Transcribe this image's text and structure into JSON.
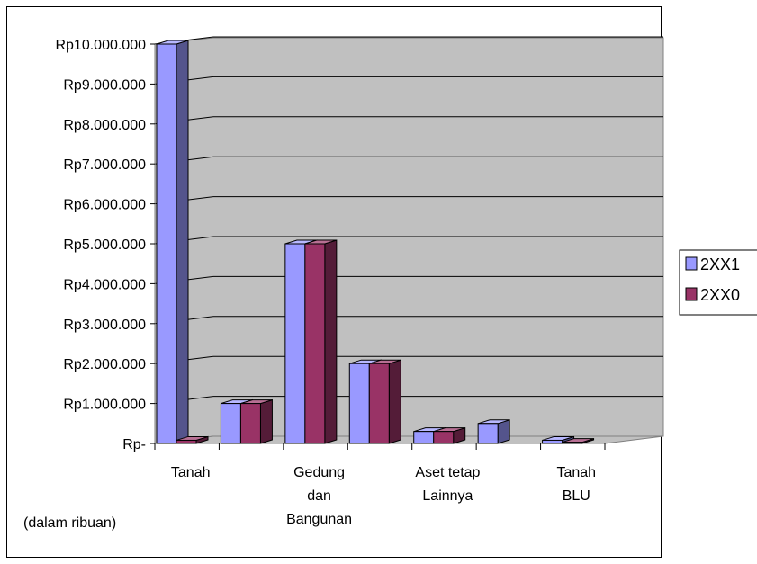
{
  "chart_data": {
    "type": "bar",
    "categories": [
      [
        "Tanah"
      ],
      [
        ""
      ],
      [
        "Gedung",
        "dan",
        "Bangunan"
      ],
      [
        ""
      ],
      [
        "Aset tetap",
        "Lainnya"
      ],
      [
        ""
      ],
      [
        "Tanah",
        "BLU"
      ]
    ],
    "series": [
      {
        "name": "2XX1",
        "color": "#9999ff",
        "values": [
          10000000,
          1000000,
          5000000,
          2000000,
          300000,
          500000,
          80000
        ]
      },
      {
        "name": "2XX0",
        "color": "#993366",
        "values": [
          80000,
          1000000,
          5000000,
          2000000,
          300000,
          0,
          30000
        ]
      }
    ],
    "yticks": [
      "Rp-",
      "Rp1.000.000",
      "Rp2.000.000",
      "Rp3.000.000",
      "Rp4.000.000",
      "Rp5.000.000",
      "Rp6.000.000",
      "Rp7.000.000",
      "Rp8.000.000",
      "Rp9.000.000",
      "Rp10.000.000"
    ],
    "ylim": [
      0,
      10000000
    ],
    "grid": true,
    "legend_position": "right",
    "note": "(dalam ribuan)"
  }
}
